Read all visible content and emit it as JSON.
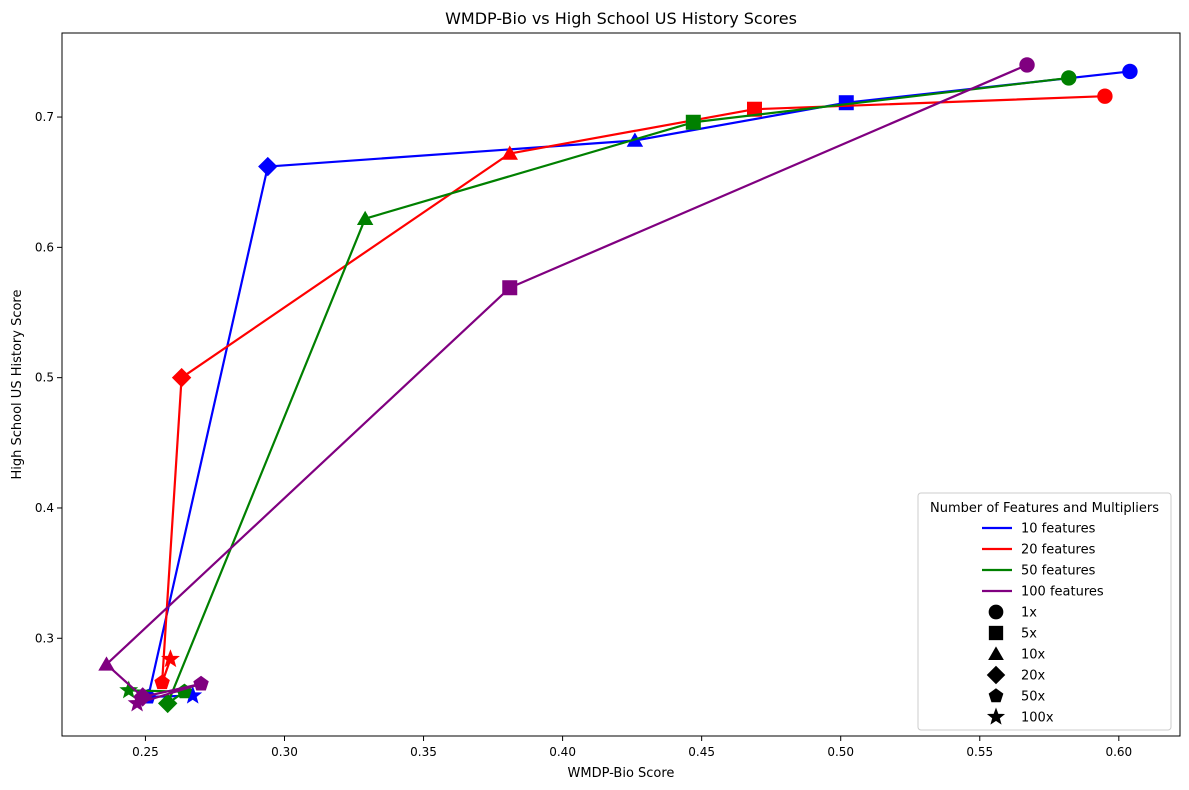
{
  "chart_data": {
    "type": "line",
    "title": "WMDP-Bio vs High School US History Scores",
    "xlabel": "WMDP-Bio Score",
    "ylabel": "High School US History Score",
    "xlim": [
      0.22,
      0.622
    ],
    "ylim": [
      0.225,
      0.7645
    ],
    "xticks": [
      0.25,
      0.3,
      0.35,
      0.4,
      0.45,
      0.5,
      0.55,
      0.6
    ],
    "xtick_labels": [
      "0.25",
      "0.30",
      "0.35",
      "0.40",
      "0.45",
      "0.50",
      "0.55",
      "0.60"
    ],
    "yticks": [
      0.3,
      0.4,
      0.5,
      0.6,
      0.7
    ],
    "ytick_labels": [
      "0.3",
      "0.4",
      "0.5",
      "0.6",
      "0.7"
    ],
    "grid": false,
    "legend_title": "Number of Features and Multipliers",
    "legend_placement": "lower-right",
    "multipliers": [
      {
        "label": "1x",
        "marker": "circle"
      },
      {
        "label": "5x",
        "marker": "square"
      },
      {
        "label": "10x",
        "marker": "triangle"
      },
      {
        "label": "20x",
        "marker": "diamond"
      },
      {
        "label": "50x",
        "marker": "pentagon"
      },
      {
        "label": "100x",
        "marker": "star"
      }
    ],
    "series": [
      {
        "name": "10 features",
        "color": "#0000ff",
        "x": [
          0.604,
          0.502,
          0.426,
          0.294,
          0.251,
          0.267
        ],
        "y": [
          0.735,
          0.711,
          0.682,
          0.662,
          0.255,
          0.256
        ]
      },
      {
        "name": "20 features",
        "color": "#ff0000",
        "x": [
          0.595,
          0.469,
          0.381,
          0.263,
          0.256,
          0.259
        ],
        "y": [
          0.716,
          0.706,
          0.672,
          0.5,
          0.266,
          0.284
        ]
      },
      {
        "name": "50 features",
        "color": "#008000",
        "x": [
          0.582,
          0.447,
          0.329,
          0.258,
          0.264,
          0.244
        ],
        "y": [
          0.73,
          0.696,
          0.622,
          0.25,
          0.259,
          0.26
        ]
      },
      {
        "name": "100 features",
        "color": "#800080",
        "x": [
          0.567,
          0.381,
          0.236,
          0.249,
          0.27,
          0.247
        ],
        "y": [
          0.74,
          0.569,
          0.28,
          0.255,
          0.265,
          0.25
        ]
      }
    ]
  }
}
